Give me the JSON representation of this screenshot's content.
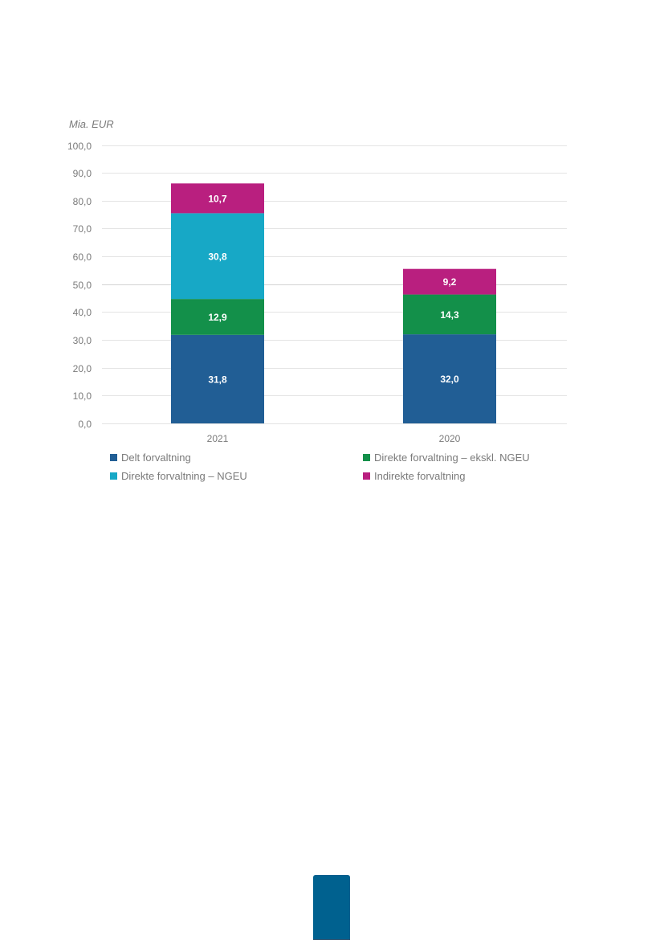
{
  "chart_data": {
    "type": "bar",
    "stacked": true,
    "unit_label": "Mia. EUR",
    "categories": [
      "2021",
      "2020"
    ],
    "series": [
      {
        "name": "Delt forvaltning",
        "color": "#215e95",
        "values": [
          31.8,
          32.0
        ],
        "labels": [
          "31,8",
          "32,0"
        ]
      },
      {
        "name": "Direkte forvaltning – ekskl. NGEU",
        "color": "#13904a",
        "values": [
          12.9,
          14.3
        ],
        "labels": [
          "12,9",
          "14,3"
        ]
      },
      {
        "name": "Direkte forvaltning – NGEU",
        "color": "#17a8c6",
        "values": [
          30.8,
          0
        ],
        "labels": [
          "30,8",
          ""
        ]
      },
      {
        "name": "Indirekte forvaltning",
        "color": "#b91f7f",
        "values": [
          10.7,
          9.2
        ],
        "labels": [
          "10,7",
          "9,2"
        ]
      }
    ],
    "ylim": [
      0,
      100
    ],
    "yticks": [
      "0,0",
      "10,0",
      "20,0",
      "30,0",
      "40,0",
      "50,0",
      "60,0",
      "70,0",
      "80,0",
      "90,0",
      "100,0"
    ],
    "grid": true,
    "legend_placement": "bottom"
  },
  "legend_items": [
    {
      "label": "Delt forvaltning",
      "color": "#215e95"
    },
    {
      "label": "Direkte forvaltning – ekskl. NGEU",
      "color": "#13904a"
    },
    {
      "label": "Direkte forvaltning – NGEU",
      "color": "#17a8c6"
    },
    {
      "label": "Indirekte forvaltning",
      "color": "#b91f7f"
    }
  ],
  "page_tab_color": "#00618f"
}
